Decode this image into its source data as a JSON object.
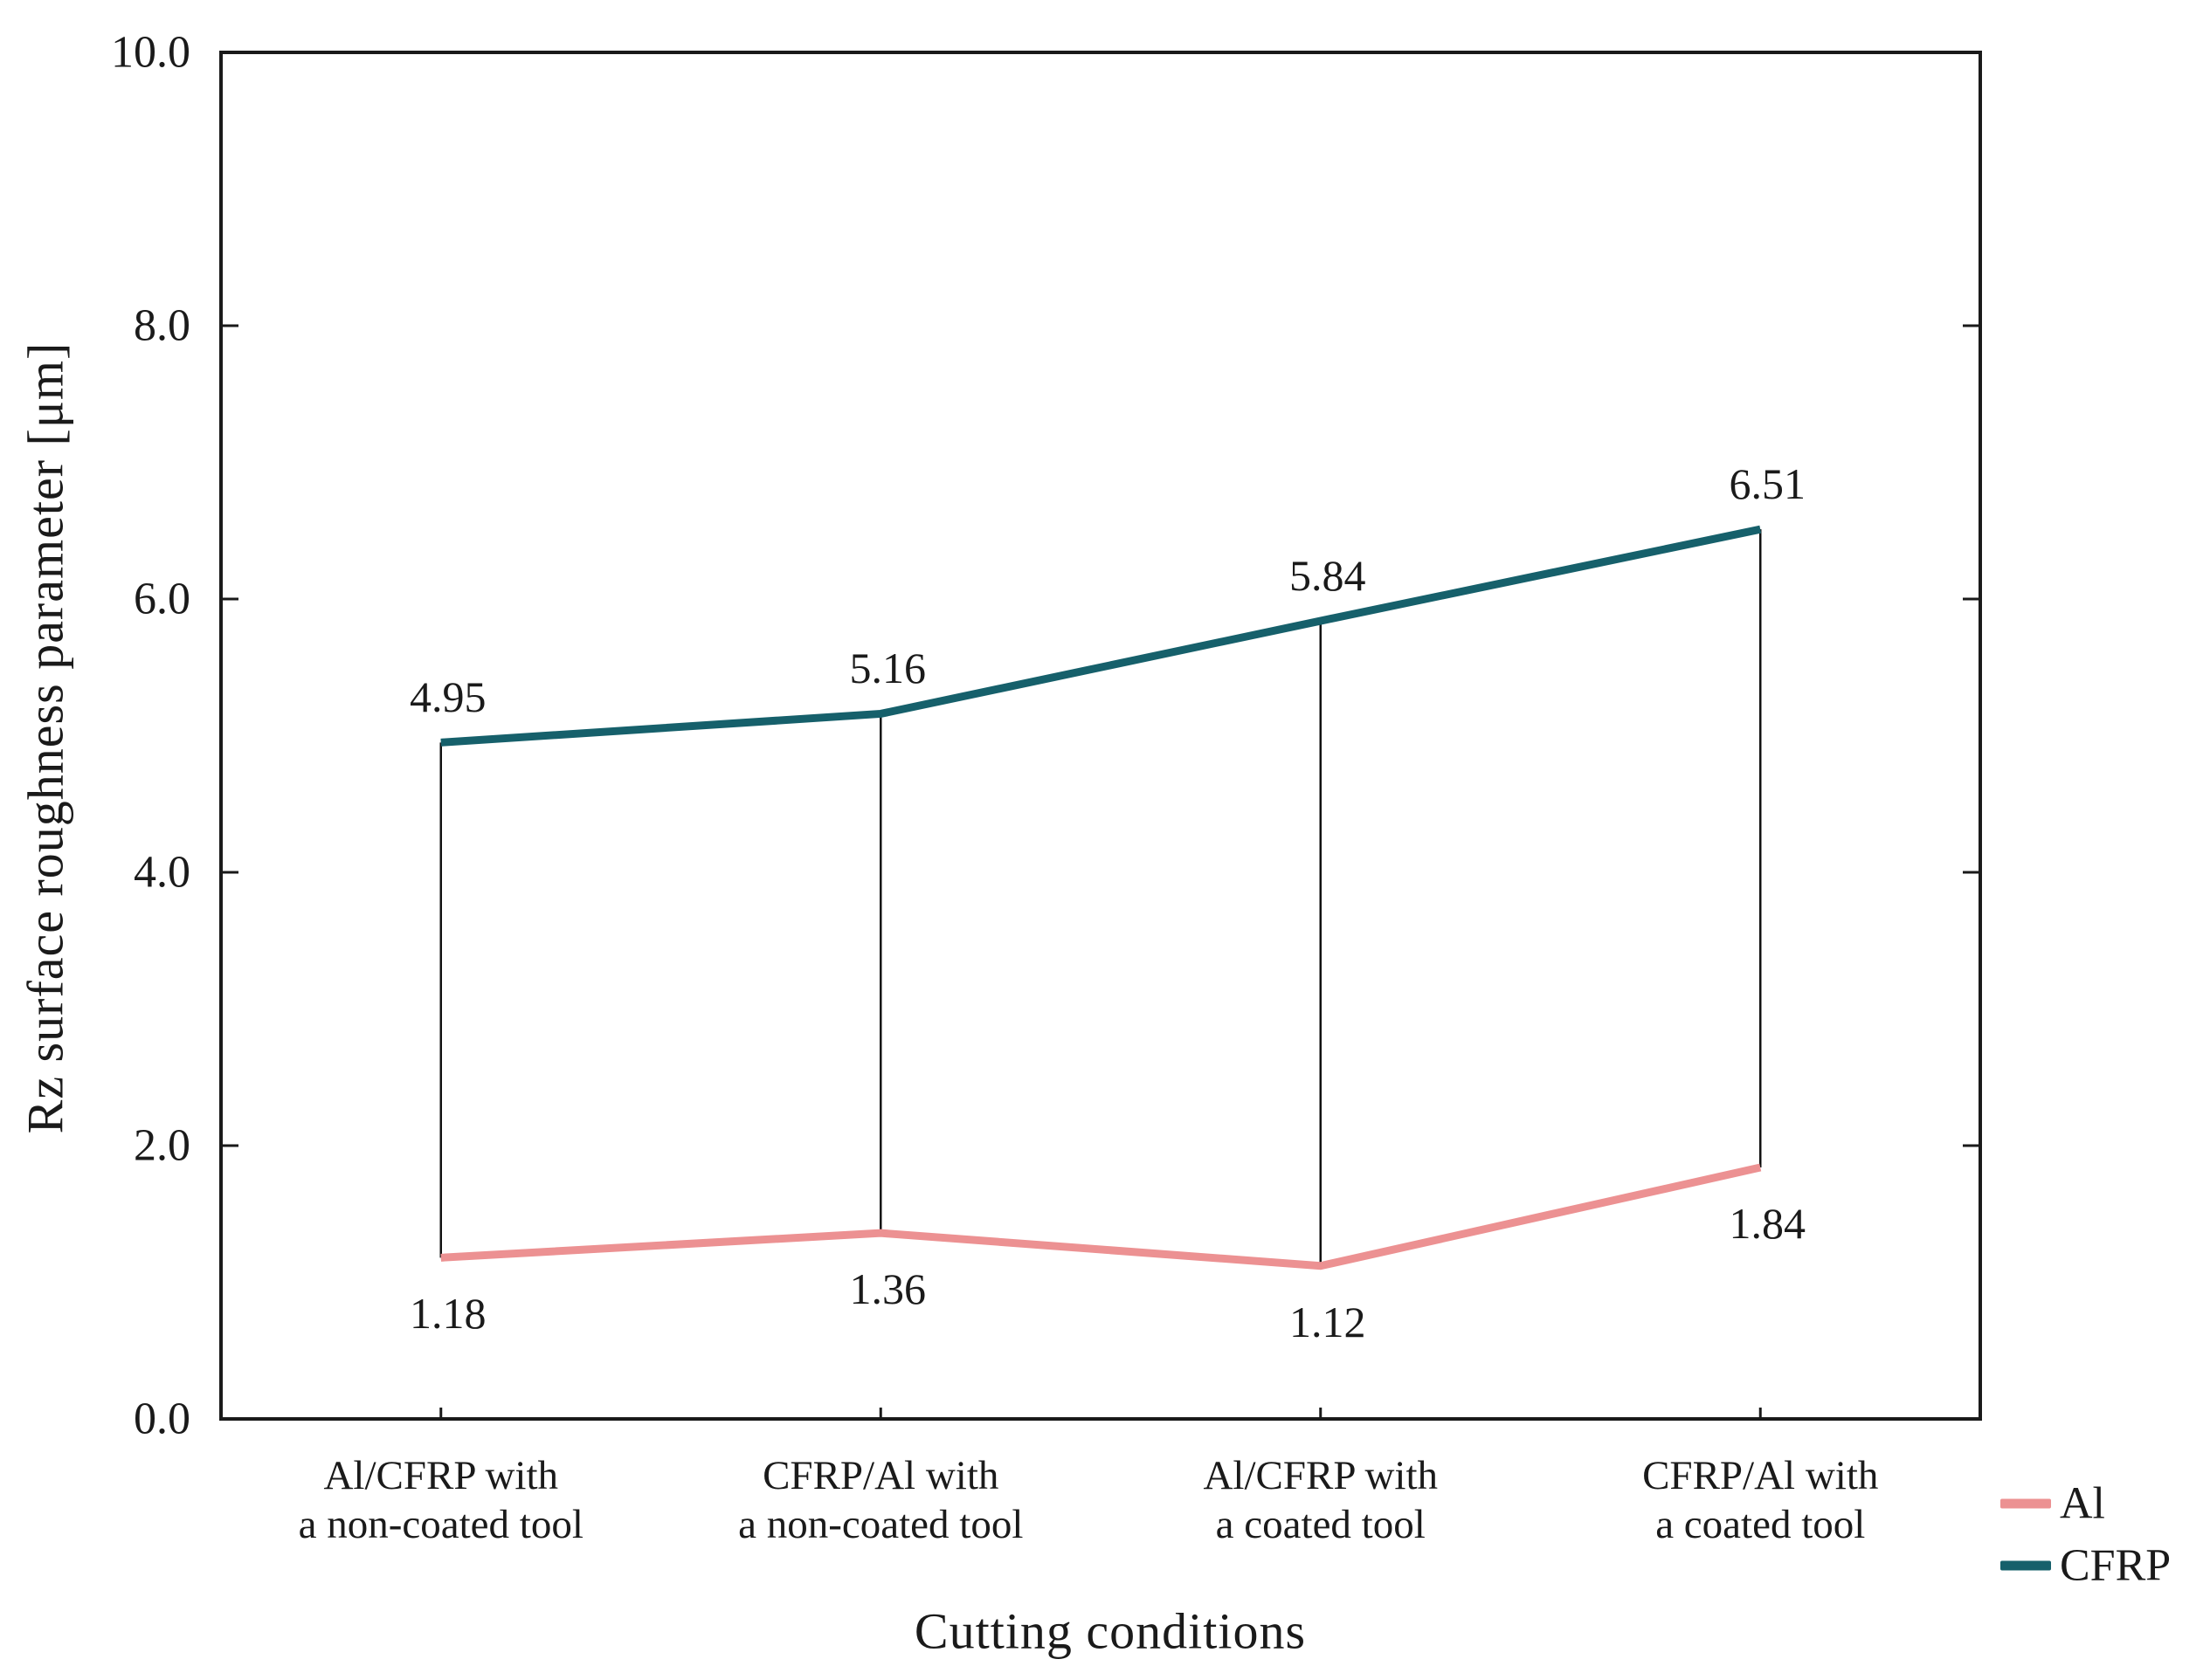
{
  "chart_data": {
    "type": "line",
    "title": "",
    "xlabel": "Cutting conditions",
    "ylabel": "Rz surface roughness parameter [μm]",
    "ylim": [
      0,
      10
    ],
    "yticks": [
      0,
      2,
      4,
      6,
      8,
      10
    ],
    "ytick_labels": [
      "0.0",
      "2.0",
      "4.0",
      "6.0",
      "8.0",
      "10.0"
    ],
    "categories": [
      {
        "line1": "Al/CFRP with",
        "line2": "a non-coated tool"
      },
      {
        "line1": "CFRP/Al with",
        "line2": "a non-coated tool"
      },
      {
        "line1": "Al/CFRP with",
        "line2": "a coated tool"
      },
      {
        "line1": "CFRP/Al with",
        "line2": "a coated tool"
      }
    ],
    "series": [
      {
        "name": "Al",
        "color": "#ec9192",
        "values": [
          1.18,
          1.36,
          1.12,
          1.84
        ],
        "labels": [
          "1.18",
          "1.36",
          "1.12",
          "1.84"
        ],
        "label_side": "below"
      },
      {
        "name": "CFRP",
        "color": "#16606b",
        "values": [
          4.95,
          5.16,
          5.84,
          6.51
        ],
        "labels": [
          "4.95",
          "5.16",
          "5.84",
          "6.51"
        ],
        "label_side": "above"
      }
    ],
    "connectors": true,
    "grid": false,
    "legend_position": "bottom-right",
    "axis_color": "#1a1a1a",
    "text_color": "#1a1a1a"
  }
}
